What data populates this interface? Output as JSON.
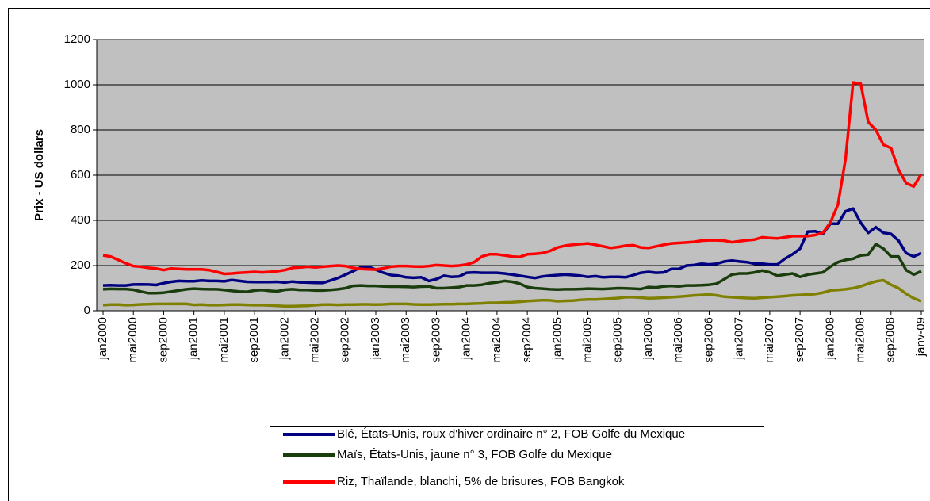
{
  "chart_data": {
    "type": "line",
    "y_label": "Prix - US dollars",
    "categories": [
      "jan2000",
      null,
      null,
      null,
      "mai2000",
      null,
      null,
      null,
      "sep2000",
      null,
      null,
      null,
      "jan2001",
      null,
      null,
      null,
      "mai2001",
      null,
      null,
      null,
      "sep2001",
      null,
      null,
      null,
      "jan2002",
      null,
      null,
      null,
      "mai2002",
      null,
      null,
      null,
      "sep2002",
      null,
      null,
      null,
      "jan2003",
      null,
      null,
      null,
      "mai2003",
      null,
      null,
      null,
      "sep2003",
      null,
      null,
      null,
      "jan2004",
      null,
      null,
      null,
      "mai2004",
      null,
      null,
      null,
      "sep2004",
      null,
      null,
      null,
      "jan2005",
      null,
      null,
      null,
      "mai2005",
      null,
      null,
      null,
      "sep2005",
      null,
      null,
      null,
      "jan2006",
      null,
      null,
      null,
      "mai2006",
      null,
      null,
      null,
      "sep2006",
      null,
      null,
      null,
      "jan2007",
      null,
      null,
      null,
      "mai2007",
      null,
      null,
      null,
      "sep2007",
      null,
      null,
      null,
      "jan2008",
      null,
      null,
      null,
      "mai2008",
      null,
      null,
      null,
      "sep2008",
      null,
      null,
      null,
      "janv-09"
    ],
    "series": [
      {
        "name": "Blé, États-Unis, roux d'hiver ordinaire n° 2, FOB Golfe du Mexique",
        "color": "#000080",
        "values": [
          112,
          113,
          112,
          112,
          116,
          117,
          116,
          114,
          122,
          128,
          132,
          131,
          131,
          134,
          132,
          132,
          130,
          136,
          132,
          128,
          127,
          127,
          127,
          128,
          125,
          129,
          126,
          125,
          124,
          123,
          134,
          145,
          160,
          175,
          192,
          195,
          182,
          168,
          158,
          155,
          148,
          146,
          148,
          132,
          140,
          155,
          150,
          152,
          168,
          170,
          168,
          168,
          168,
          165,
          160,
          155,
          150,
          145,
          152,
          155,
          158,
          160,
          158,
          155,
          150,
          153,
          148,
          150,
          150,
          148,
          158,
          168,
          172,
          168,
          170,
          185,
          185,
          200,
          202,
          208,
          205,
          208,
          218,
          222,
          218,
          215,
          208,
          208,
          205,
          205,
          230,
          250,
          275,
          350,
          352,
          340,
          385,
          385,
          440,
          452,
          390,
          345,
          370,
          345,
          340,
          310,
          255,
          240,
          255
        ]
      },
      {
        "name": "Maïs, États-Unis, jaune n° 3, FOB Golfe du Mexique",
        "color": "#1a3d0e",
        "values": [
          95,
          97,
          96,
          96,
          93,
          85,
          78,
          78,
          80,
          85,
          90,
          95,
          98,
          96,
          95,
          95,
          92,
          88,
          85,
          84,
          90,
          92,
          88,
          86,
          93,
          95,
          92,
          92,
          90,
          90,
          92,
          95,
          100,
          110,
          112,
          110,
          110,
          108,
          107,
          107,
          106,
          105,
          107,
          108,
          100,
          100,
          102,
          105,
          112,
          112,
          115,
          122,
          126,
          132,
          128,
          120,
          105,
          100,
          98,
          95,
          94,
          95,
          95,
          96,
          98,
          97,
          96,
          98,
          100,
          99,
          98,
          96,
          105,
          103,
          108,
          110,
          108,
          112,
          112,
          113,
          115,
          120,
          140,
          160,
          165,
          165,
          170,
          178,
          170,
          155,
          160,
          165,
          150,
          160,
          165,
          170,
          195,
          215,
          225,
          230,
          245,
          248,
          295,
          275,
          240,
          240,
          180,
          160,
          175
        ]
      },
      {
        "name": "Riz, Thaïlande, blanchi, 5% de brisures, FOB Bangkok",
        "color": "#ff0000",
        "values": [
          245,
          240,
          225,
          210,
          198,
          195,
          190,
          187,
          180,
          187,
          185,
          183,
          183,
          183,
          180,
          172,
          163,
          165,
          168,
          170,
          172,
          170,
          172,
          175,
          180,
          190,
          192,
          195,
          192,
          195,
          198,
          200,
          198,
          190,
          185,
          183,
          182,
          188,
          195,
          198,
          198,
          196,
          195,
          198,
          202,
          200,
          198,
          200,
          205,
          215,
          240,
          250,
          250,
          245,
          240,
          238,
          250,
          252,
          255,
          265,
          280,
          288,
          292,
          295,
          298,
          292,
          285,
          278,
          282,
          288,
          290,
          280,
          278,
          285,
          292,
          298,
          300,
          302,
          305,
          310,
          312,
          312,
          310,
          303,
          308,
          312,
          315,
          325,
          322,
          320,
          325,
          330,
          330,
          330,
          335,
          345,
          390,
          470,
          670,
          1010,
          1005,
          835,
          800,
          735,
          720,
          625,
          565,
          550,
          605
        ]
      },
      {
        "color": "#808000",
        "values": [
          25,
          27,
          27,
          25,
          26,
          28,
          29,
          30,
          30,
          30,
          31,
          30,
          26,
          27,
          25,
          25,
          26,
          27,
          27,
          26,
          25,
          25,
          24,
          22,
          20,
          20,
          21,
          22,
          25,
          27,
          27,
          26,
          27,
          27,
          28,
          28,
          27,
          28,
          30,
          30,
          30,
          28,
          27,
          27,
          28,
          29,
          29,
          30,
          30,
          32,
          33,
          35,
          35,
          37,
          38,
          40,
          43,
          45,
          47,
          46,
          42,
          44,
          45,
          48,
          50,
          50,
          52,
          54,
          56,
          60,
          60,
          58,
          55,
          56,
          58,
          60,
          62,
          65,
          68,
          70,
          72,
          68,
          62,
          60,
          58,
          56,
          55,
          58,
          60,
          62,
          65,
          68,
          70,
          72,
          74,
          80,
          90,
          92,
          95,
          100,
          108,
          120,
          130,
          135,
          115,
          100,
          75,
          55,
          42
        ]
      }
    ],
    "ylim": [
      0,
      1200
    ],
    "yticks": [
      0,
      200,
      400,
      600,
      800,
      1000,
      1200
    ],
    "grid": true,
    "legend": "bottom"
  }
}
